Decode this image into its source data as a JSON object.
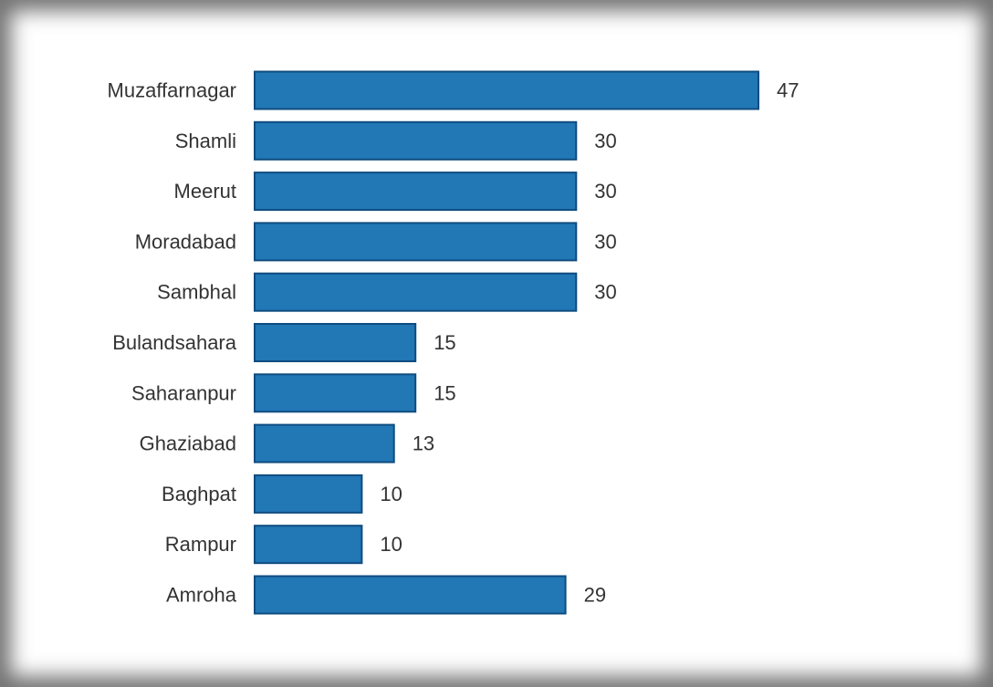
{
  "chart_data": {
    "type": "bar",
    "orientation": "horizontal",
    "title": "",
    "xlabel": "",
    "ylabel": "",
    "categories": [
      "Muzaffarnagar",
      "Shamli",
      "Meerut",
      "Moradabad",
      "Sambhal",
      "Bulandsahara",
      "Saharanpur",
      "Ghaziabad",
      "Baghpat",
      "Rampur",
      "Amroha"
    ],
    "values": [
      47,
      30,
      30,
      30,
      30,
      15,
      15,
      13,
      10,
      10,
      29
    ],
    "xlim": [
      0,
      47
    ],
    "grid": false,
    "legend": false,
    "colors": {
      "bar_fill": "#2277b5",
      "bar_stroke": "#0f4c80",
      "text": "#333333"
    }
  }
}
